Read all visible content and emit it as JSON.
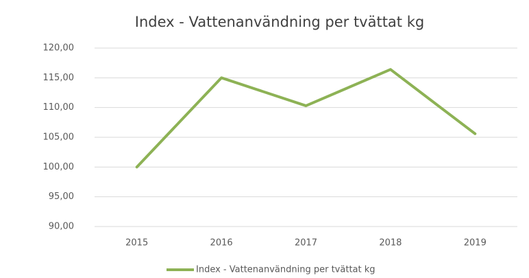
{
  "chart_data": {
    "type": "line",
    "title": "Index - Vattenanvändning per tvättat kg",
    "categories": [
      "2015",
      "2016",
      "2017",
      "2018",
      "2019"
    ],
    "series": [
      {
        "name": "Index - Vattenanvändning per tvättat kg",
        "color": "#8db255",
        "values": [
          100,
          115,
          110.3,
          116.4,
          105.6
        ]
      }
    ],
    "ylim": [
      90,
      120
    ],
    "yticks": [
      {
        "value": 90,
        "label": "90,00"
      },
      {
        "value": 95,
        "label": "95,00"
      },
      {
        "value": 100,
        "label": "100,00"
      },
      {
        "value": 105,
        "label": "105,00"
      },
      {
        "value": 110,
        "label": "110,00"
      },
      {
        "value": 115,
        "label": "115,00"
      },
      {
        "value": 120,
        "label": "120,00"
      }
    ],
    "grid": true,
    "legend": "bottom"
  }
}
